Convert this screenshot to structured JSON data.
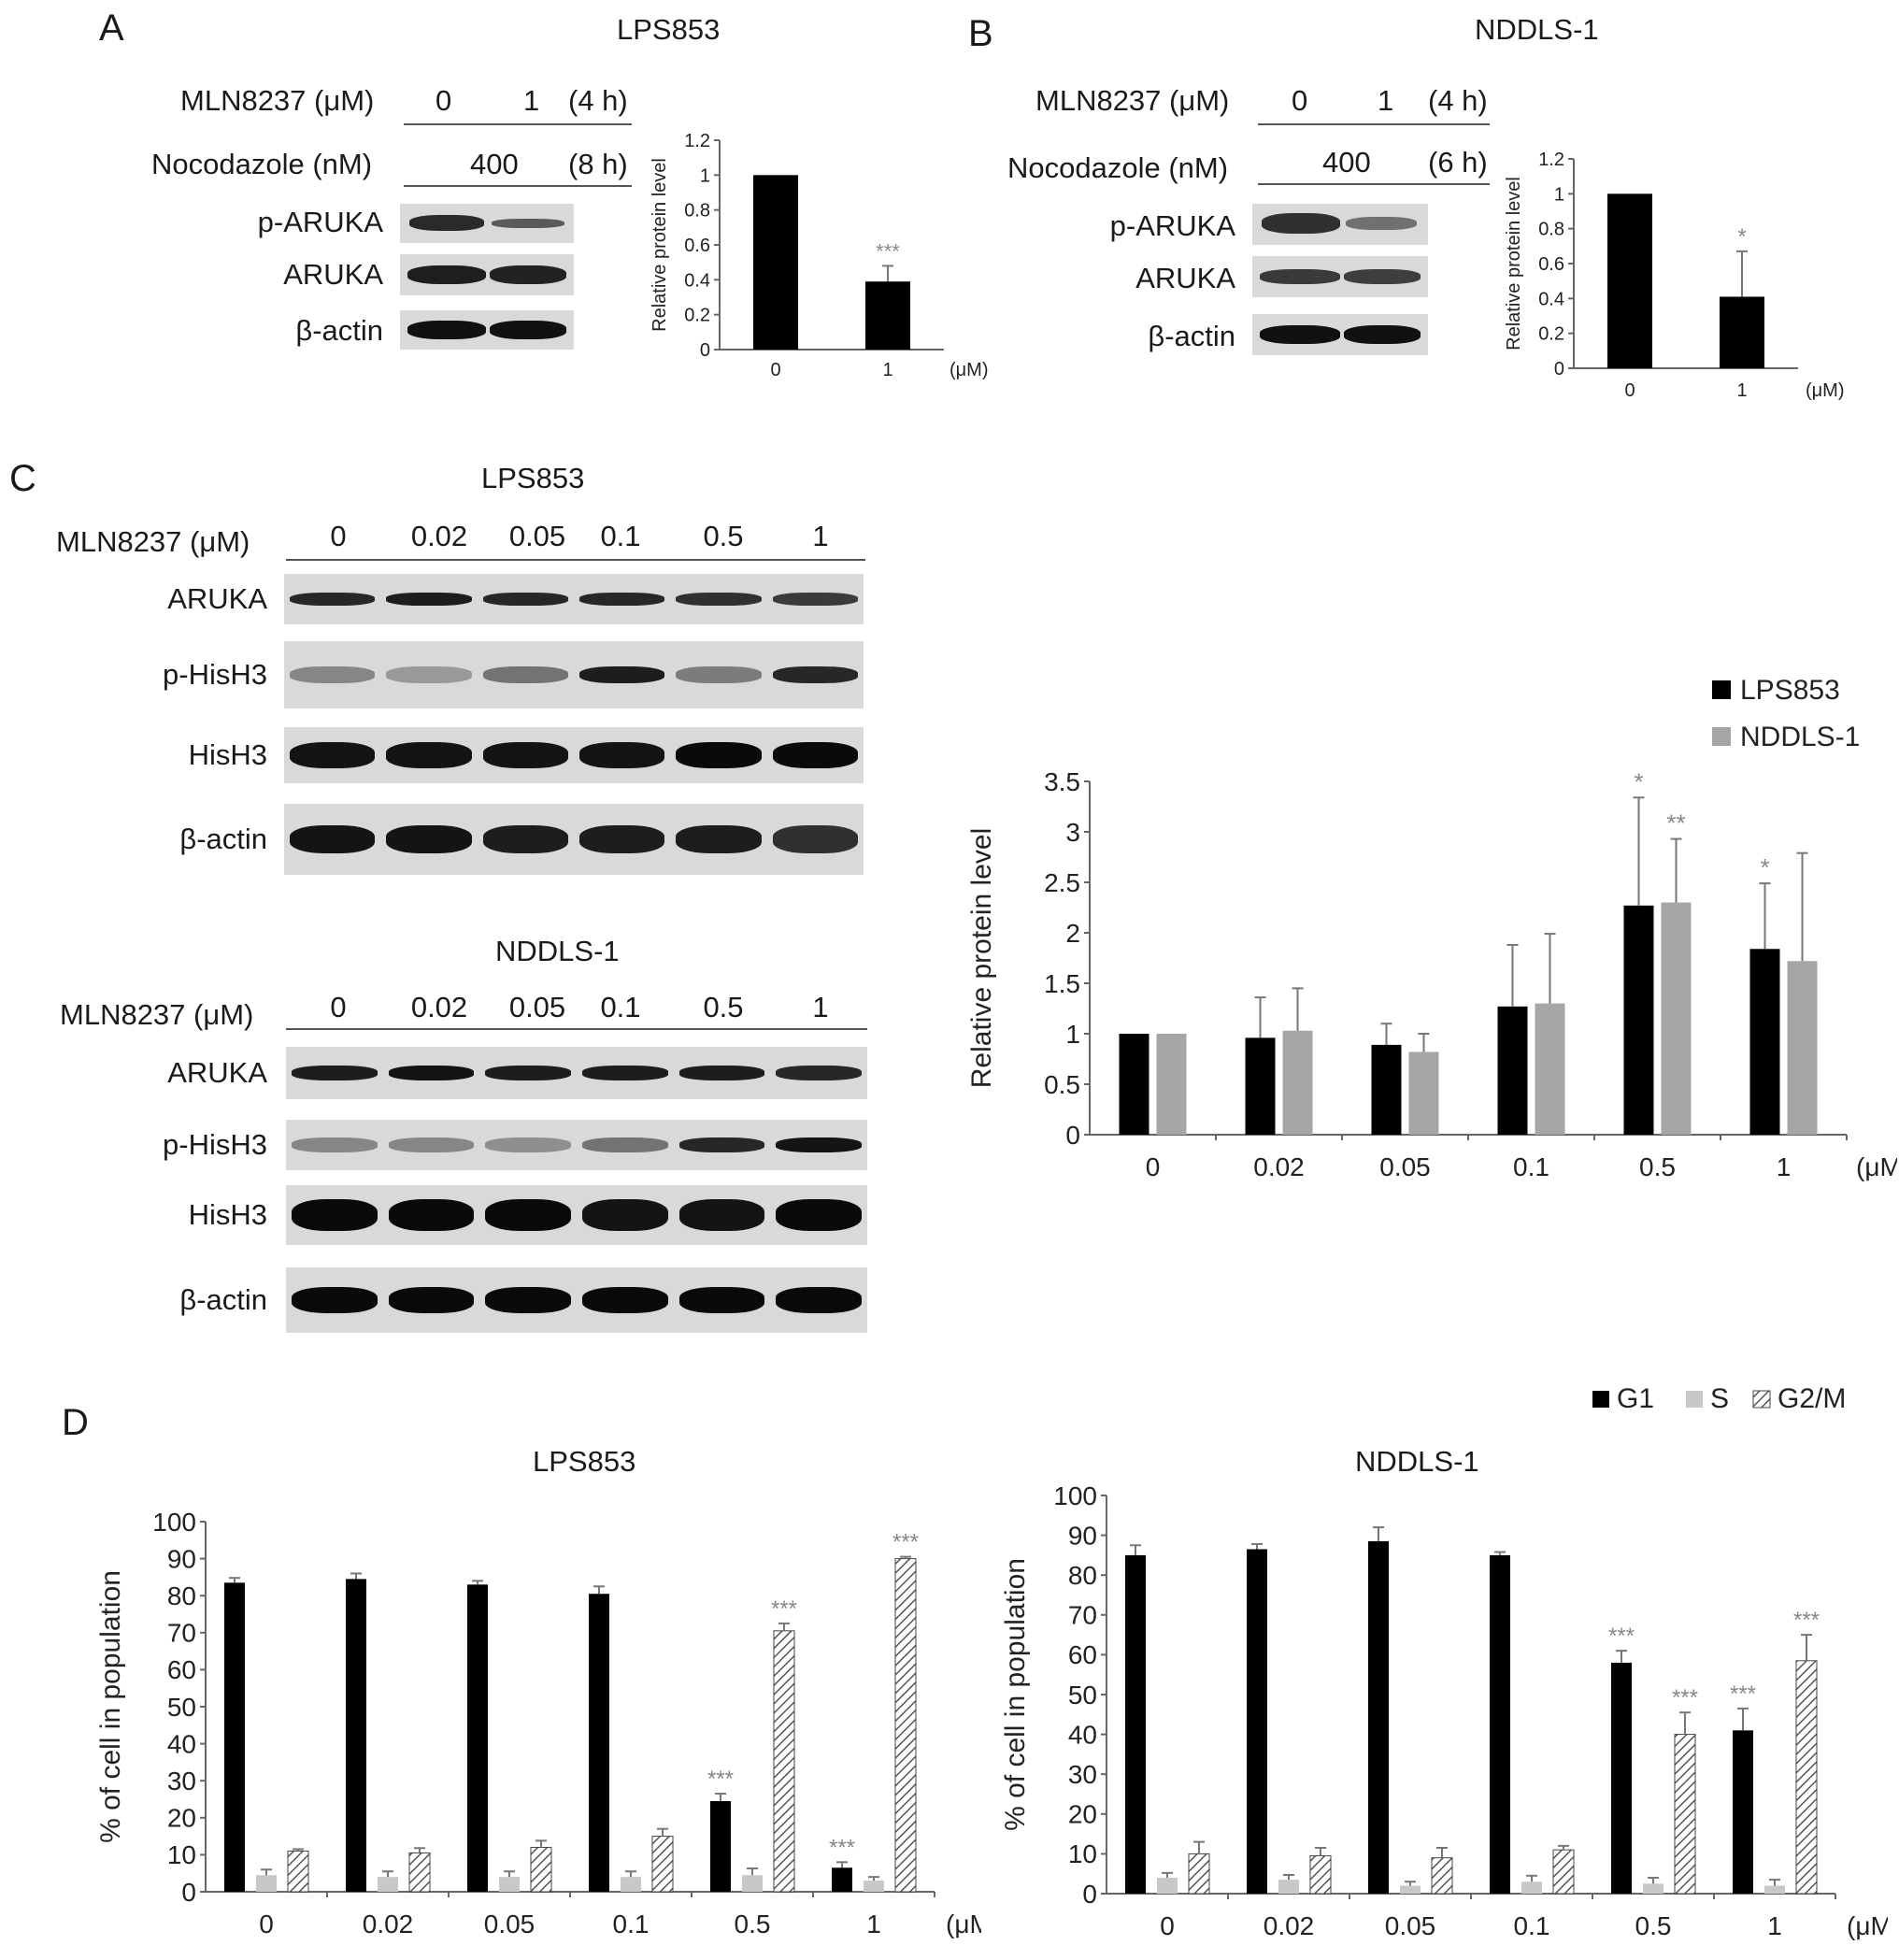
{
  "panels": {
    "A": {
      "letter": "A",
      "title": "LPS853",
      "mln_label": "MLN8237 (μM)",
      "mln_values": [
        "0",
        "1"
      ],
      "mln_time": "(4 h)",
      "noc_label": "Nocodazole (nM)",
      "noc_value": "400",
      "noc_time": "(8 h)",
      "blots": [
        "p-ARUKA",
        "ARUKA",
        "β-actin"
      ]
    },
    "B": {
      "letter": "B",
      "title": "NDDLS-1",
      "mln_label": "MLN8237 (μM)",
      "mln_values": [
        "0",
        "1"
      ],
      "mln_time": "(4 h)",
      "noc_label": "Nocodazole (nM)",
      "noc_value": "400",
      "noc_time": "(6 h)",
      "blots": [
        "p-ARUKA",
        "ARUKA",
        "β-actin"
      ]
    },
    "C": {
      "letter": "C",
      "top_title": "LPS853",
      "bottom_title": "NDDLS-1",
      "mln_label": "MLN8237 (μM)",
      "doses": [
        "0",
        "0.02",
        "0.05",
        "0.1",
        "0.5",
        "1"
      ],
      "blots": [
        "ARUKA",
        "p-HisH3",
        "HisH3",
        "β-actin"
      ]
    },
    "D": {
      "letter": "D",
      "left_title": "LPS853",
      "right_title": "NDDLS-1"
    }
  },
  "chart_data": [
    {
      "id": "A-bar",
      "type": "bar",
      "categories": [
        "0",
        "1"
      ],
      "x_unit": "(μM)",
      "values": [
        1.0,
        0.39
      ],
      "errors": [
        0,
        0.09
      ],
      "annotations": [
        "",
        "***"
      ],
      "ylabel": "Relative protein level",
      "ylim": [
        0,
        1.2
      ],
      "yticks": [
        "0",
        "0.2",
        "0.4",
        "0.6",
        "0.8",
        "1",
        "1.2"
      ]
    },
    {
      "id": "B-bar",
      "type": "bar",
      "categories": [
        "0",
        "1"
      ],
      "x_unit": "(μM)",
      "values": [
        1.0,
        0.41
      ],
      "errors": [
        0,
        0.26
      ],
      "annotations": [
        "",
        "*"
      ],
      "ylabel": "Relative protein level",
      "ylim": [
        0,
        1.2
      ],
      "yticks": [
        "0",
        "0.2",
        "0.4",
        "0.6",
        "0.8",
        "1",
        "1.2"
      ]
    },
    {
      "id": "C-bar",
      "type": "bar",
      "categories": [
        "0",
        "0.02",
        "0.05",
        "0.1",
        "0.5",
        "1"
      ],
      "x_unit": "(μM)",
      "ylabel": "Relative protein level",
      "ylim": [
        0,
        3.5
      ],
      "yticks": [
        "0",
        "0.5",
        "1",
        "1.5",
        "2",
        "2.5",
        "3",
        "3.5"
      ],
      "legend_position": "top-right",
      "series": [
        {
          "name": "LPS853",
          "color": "#000000",
          "values": [
            1.0,
            0.96,
            0.89,
            1.27,
            2.27,
            1.84
          ],
          "errors": [
            0,
            0.4,
            0.21,
            0.61,
            1.07,
            0.65
          ],
          "annotations": [
            "",
            "",
            "",
            "",
            "*",
            "*"
          ]
        },
        {
          "name": "NDDLS-1",
          "color": "#a6a6a6",
          "values": [
            1.0,
            1.03,
            0.82,
            1.3,
            2.3,
            1.72
          ],
          "errors": [
            0,
            0.42,
            0.18,
            0.69,
            0.63,
            1.07
          ],
          "annotations": [
            "",
            "",
            "",
            "",
            "**",
            ""
          ]
        }
      ]
    },
    {
      "id": "D-left",
      "type": "bar",
      "categories": [
        "0",
        "0.02",
        "0.05",
        "0.1",
        "0.5",
        "1"
      ],
      "x_unit": "(μM)",
      "ylabel": "% of cell in population",
      "ylim": [
        0,
        100
      ],
      "yticks": [
        "0",
        "10",
        "20",
        "30",
        "40",
        "50",
        "60",
        "70",
        "80",
        "90",
        "100"
      ],
      "series": [
        {
          "name": "G1",
          "values": [
            83.5,
            84.5,
            83,
            80.5,
            24.5,
            6.5
          ],
          "errors": [
            1.3,
            1.5,
            1,
            2,
            2,
            1.5
          ],
          "annotations": [
            "",
            "",
            "",
            "",
            "***",
            "***"
          ]
        },
        {
          "name": "S",
          "values": [
            4.5,
            4,
            4,
            4,
            4.5,
            3
          ],
          "errors": [
            1.5,
            1.5,
            1.5,
            1.5,
            1.8,
            1
          ],
          "annotations": [
            "",
            "",
            "",
            "",
            "",
            ""
          ]
        },
        {
          "name": "G2/M",
          "values": [
            11,
            10.5,
            12,
            15,
            70.5,
            90
          ],
          "errors": [
            0.5,
            1.3,
            1.8,
            2,
            2,
            0.5
          ],
          "annotations": [
            "",
            "",
            "",
            "",
            "***",
            "***"
          ]
        }
      ]
    },
    {
      "id": "D-right",
      "type": "bar",
      "categories": [
        "0",
        "0.02",
        "0.05",
        "0.1",
        "0.5",
        "1"
      ],
      "x_unit": "(μM)",
      "ylabel": "% of cell in population",
      "ylim": [
        0,
        100
      ],
      "yticks": [
        "0",
        "10",
        "20",
        "30",
        "40",
        "50",
        "60",
        "70",
        "80",
        "90",
        "100"
      ],
      "series": [
        {
          "name": "G1",
          "values": [
            85,
            86.5,
            88.5,
            85,
            58,
            41
          ],
          "errors": [
            2.5,
            1.3,
            3.5,
            0.8,
            3,
            5.5
          ],
          "annotations": [
            "",
            "",
            "",
            "",
            "***",
            "***"
          ]
        },
        {
          "name": "S",
          "values": [
            4,
            3.5,
            2,
            3,
            2.5,
            2
          ],
          "errors": [
            1.2,
            1.2,
            1,
            1.5,
            1.5,
            1.5
          ],
          "annotations": [
            "",
            "",
            "",
            "",
            "",
            ""
          ]
        },
        {
          "name": "G2/M",
          "values": [
            10,
            9.5,
            9,
            11,
            40,
            58.5
          ],
          "errors": [
            3,
            2,
            2.5,
            1,
            5.5,
            6.5
          ],
          "annotations": [
            "",
            "",
            "",
            "",
            "***",
            "***"
          ]
        }
      ]
    }
  ],
  "legend_D": [
    "G1",
    "S",
    "G2/M"
  ]
}
